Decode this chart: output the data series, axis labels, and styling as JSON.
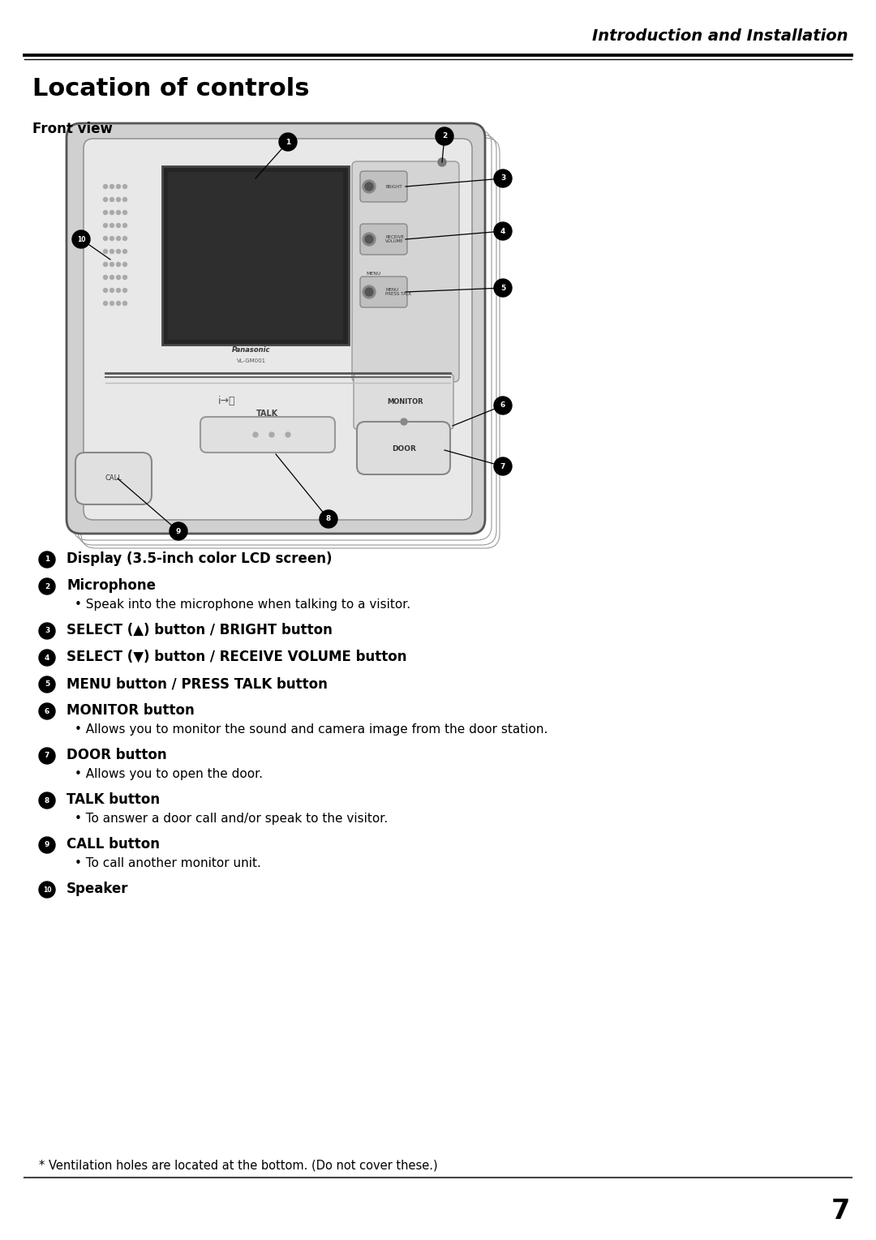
{
  "page_title": "Introduction and Installation",
  "section_title": "Location of controls",
  "front_view_label": "Front view",
  "page_number": "7",
  "bg": "#ffffff",
  "items": [
    {
      "num": "1",
      "bold": "Display (3.5-inch color LCD screen)",
      "sub": "",
      "has_sub": false
    },
    {
      "num": "2",
      "bold": "Microphone",
      "sub": "Speak into the microphone when talking to a visitor.",
      "has_sub": true
    },
    {
      "num": "3",
      "bold": "SELECT (▲) button / BRIGHT button",
      "sub": "",
      "has_sub": false
    },
    {
      "num": "4",
      "bold": "SELECT (▼) button / RECEIVE VOLUME button",
      "sub": "",
      "has_sub": false
    },
    {
      "num": "5",
      "bold": "MENU button / PRESS TALK button",
      "sub": "",
      "has_sub": false
    },
    {
      "num": "6",
      "bold": "MONITOR button",
      "sub": "Allows you to monitor the sound and camera image from the door station.",
      "has_sub": true
    },
    {
      "num": "7",
      "bold": "DOOR button",
      "sub": "Allows you to open the door.",
      "has_sub": true
    },
    {
      "num": "8",
      "bold": "TALK button",
      "sub": "To answer a door call and/or speak to the visitor.",
      "has_sub": true
    },
    {
      "num": "9",
      "bold": "CALL button",
      "sub": "To call another monitor unit.",
      "has_sub": true
    },
    {
      "num": "10",
      "bold": "Speaker",
      "sub": "",
      "has_sub": false
    }
  ],
  "footnote": "* Ventilation holes are located at the bottom. (Do not cover these.)"
}
